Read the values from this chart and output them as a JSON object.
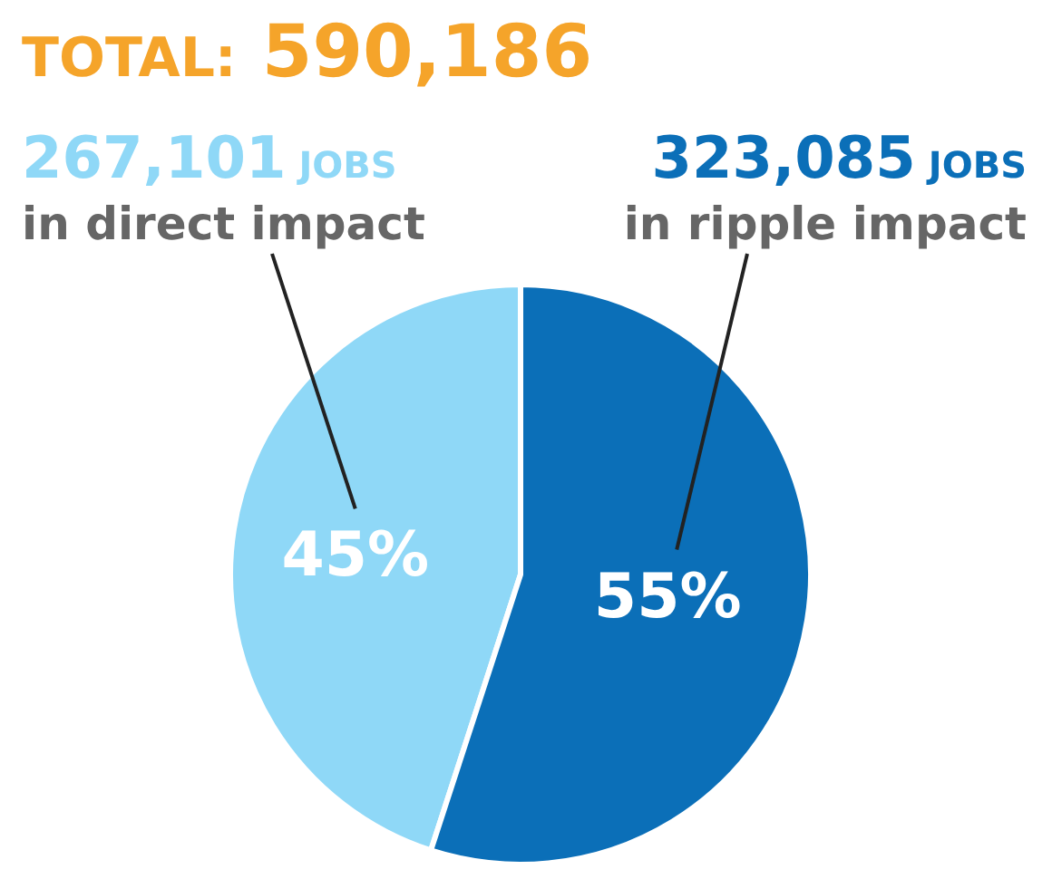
{
  "chart_data": {
    "type": "pie",
    "title": "TOTAL: 590,186",
    "categories": [
      "267,101 JOBS\nin direct impact",
      "323,085 JOBS\nin ripple impact"
    ],
    "values": [
      45,
      55
    ],
    "value_labels": [
      "45%",
      "55%"
    ],
    "colors": [
      "#8fd8f7",
      "#0b6fb8"
    ]
  }
}
